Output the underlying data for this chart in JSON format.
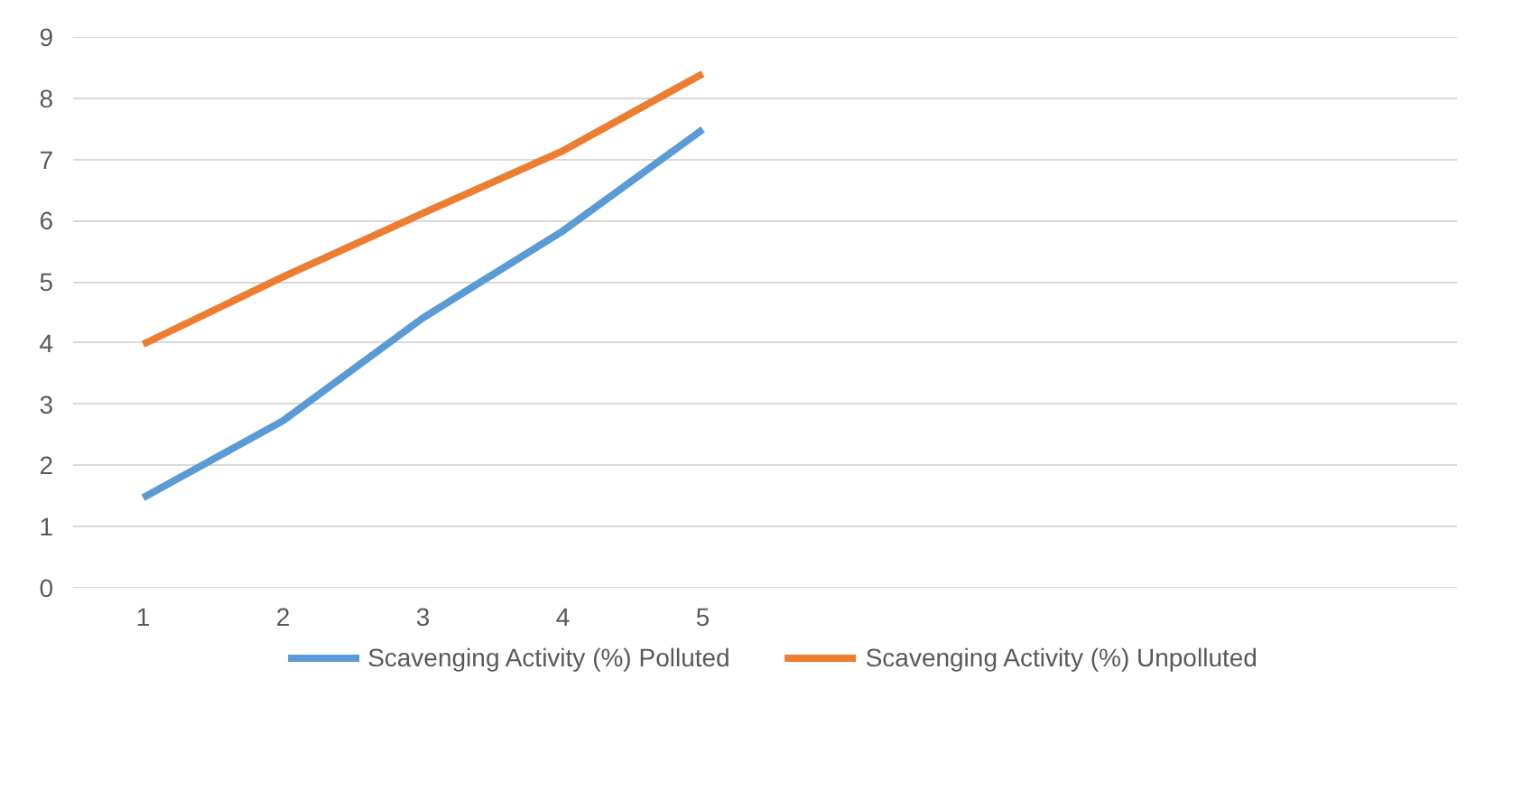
{
  "chart_data": {
    "type": "line",
    "categories": [
      "1",
      "2",
      "3",
      "4",
      "5",
      null,
      null,
      null,
      null,
      null
    ],
    "series": [
      {
        "name": "Scavenging Activity (%) Polluted",
        "color": "#5b9bd5",
        "values": [
          1.47,
          2.73,
          4.41,
          5.83,
          7.49,
          null,
          null,
          null,
          null,
          null
        ]
      },
      {
        "name": "Scavenging Activity (%) Unpolluted",
        "color": "#ed7d31",
        "values": [
          3.98,
          5.08,
          6.12,
          7.14,
          8.4,
          null,
          null,
          null,
          null,
          null
        ]
      }
    ],
    "ylim": [
      0,
      9
    ],
    "yticks": [
      0,
      1,
      2,
      3,
      4,
      5,
      6,
      7,
      8,
      9
    ],
    "grid": "y",
    "legend": "bottom",
    "marker": "none",
    "line_style": "solid"
  }
}
